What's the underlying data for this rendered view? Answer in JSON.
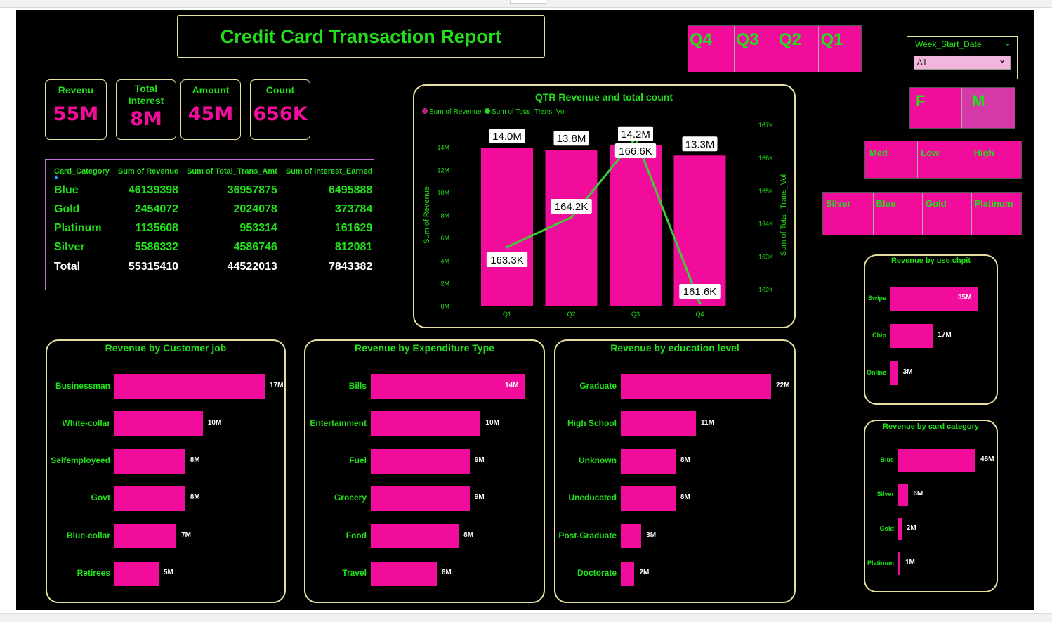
{
  "report_title": "Credit Card Transaction Report",
  "kpis": [
    {
      "label": "Revenu",
      "value": "55M"
    },
    {
      "label": "Total Interest",
      "value": "8M"
    },
    {
      "label": "Amount",
      "value": "45M"
    },
    {
      "label": "Count",
      "value": "656K"
    }
  ],
  "quarter_slicer": [
    "Q4",
    "Q3",
    "Q2",
    "Q1"
  ],
  "week_filter": {
    "label": "Week_Start_Date",
    "selected": "All"
  },
  "gender_slicer": [
    "F",
    "M"
  ],
  "income_slicer": [
    "Med",
    "Low",
    "High"
  ],
  "card_slicer": [
    "Silver",
    "Blue",
    "Gold",
    "Platinum"
  ],
  "matrix": {
    "headers": [
      "Card_Category",
      "Sum of Revenue",
      "Sum of Total_Trans_Amt",
      "Sum of Interest_Earned"
    ],
    "rows": [
      [
        "Blue",
        "46139398",
        "36957875",
        "6495888"
      ],
      [
        "Gold",
        "2454072",
        "2024078",
        "373784"
      ],
      [
        "Platinum",
        "1135608",
        "953314",
        "161629"
      ],
      [
        "Silver",
        "5586332",
        "4586746",
        "812081"
      ]
    ],
    "total": [
      "Total",
      "55315410",
      "44522013",
      "7843382"
    ]
  },
  "colors": {
    "accent": "#22e01a",
    "bar": "#f20c9c",
    "background": "#000000",
    "border": "#e8e0a0"
  },
  "chart_data": [
    {
      "type": "bar",
      "title": "QTR Revenue and total count",
      "legend": [
        "Sum of Revenue",
        "Sum of Total_Trans_Vol"
      ],
      "legend_position": "top-left",
      "ylabel": "Sum of Revenue",
      "y2label": "Sum of Total_Trans_Vol",
      "categories": [
        "Q1",
        "Q2",
        "Q3",
        "Q4"
      ],
      "y_ticks": [
        "0M",
        "2M",
        "4M",
        "6M",
        "8M",
        "10M",
        "12M",
        "14M"
      ],
      "y2_ticks": [
        "162K",
        "163K",
        "164K",
        "165K",
        "166K",
        "167K"
      ],
      "ylim": [
        0,
        14
      ],
      "y2lim": [
        161.5,
        167
      ],
      "series": [
        {
          "name": "Sum of Revenue",
          "kind": "bar",
          "values": [
            14.0,
            13.8,
            14.2,
            13.3
          ],
          "labels": [
            "14.0M",
            "13.8M",
            "14.2M",
            "13.3M"
          ]
        },
        {
          "name": "Sum of Total_Trans_Vol",
          "kind": "line",
          "values": [
            163.3,
            164.2,
            166.6,
            161.6
          ],
          "labels": [
            "163.3K",
            "164.2K",
            "166.6K",
            "161.6K"
          ]
        }
      ]
    },
    {
      "type": "bar",
      "title": "Revenue by Customer job",
      "categories": [
        "Businessman",
        "White-collar",
        "Selfemployeed",
        "Govt",
        "Blue-collar",
        "Retirees"
      ],
      "values": [
        17,
        10,
        8,
        8,
        7,
        5
      ],
      "labels": [
        "17M",
        "10M",
        "8M",
        "8M",
        "7M",
        "5M"
      ]
    },
    {
      "type": "bar",
      "title": "Revenue by Expenditure Type",
      "categories": [
        "Bills",
        "Entertainment",
        "Fuel",
        "Grocery",
        "Food",
        "Travel"
      ],
      "values": [
        14,
        10,
        9,
        9,
        8,
        6
      ],
      "labels": [
        "14M",
        "10M",
        "9M",
        "9M",
        "8M",
        "6M"
      ]
    },
    {
      "type": "bar",
      "title": "Revenue by education level",
      "categories": [
        "Graduate",
        "High School",
        "Unknown",
        "Uneducated",
        "Post-Graduate",
        "Doctorate"
      ],
      "values": [
        22,
        11,
        8,
        8,
        3,
        2
      ],
      "labels": [
        "22M",
        "11M",
        "8M",
        "8M",
        "3M",
        "2M"
      ]
    },
    {
      "type": "bar",
      "title": "Revenue by use chpit",
      "categories": [
        "Swipe",
        "Chip",
        "Online"
      ],
      "values": [
        35,
        17,
        3
      ],
      "labels": [
        "35M",
        "17M",
        "3M"
      ]
    },
    {
      "type": "bar",
      "title": "Revenue by card category",
      "categories": [
        "Blue",
        "Silver",
        "Gold",
        "Platinum"
      ],
      "values": [
        46,
        6,
        2,
        1
      ],
      "labels": [
        "46M",
        "6M",
        "2M",
        "1M"
      ]
    }
  ]
}
